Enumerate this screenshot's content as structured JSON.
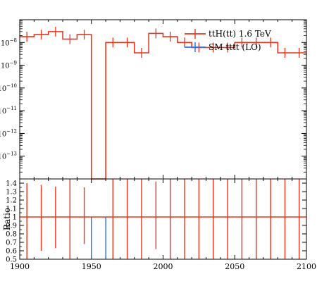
{
  "chart_data": [
    {
      "panel": "main",
      "type": "line",
      "style": "step histogram with error bars",
      "ylog": true,
      "ylim": [
        1e-14,
        1e-07
      ],
      "xlim": [
        1900,
        2100
      ],
      "yticks": [
        {
          "value": 1e-08,
          "base": "10",
          "exp": "−8"
        },
        {
          "value": 1e-09,
          "base": "10",
          "exp": "−9"
        },
        {
          "value": 1e-10,
          "base": "10",
          "exp": "−10"
        },
        {
          "value": 1e-11,
          "base": "10",
          "exp": "−11"
        },
        {
          "value": 1e-12,
          "base": "10",
          "exp": "−12"
        },
        {
          "value": 1e-13,
          "base": "10",
          "exp": "−13"
        }
      ],
      "legend_position": "top-right",
      "legend": [
        {
          "label": "ttH(tt) 1.6 TeV",
          "color": "#e8341c"
        },
        {
          "label": "SM tttt (LO)",
          "color": "#2f6fd6"
        }
      ],
      "bin_edges": [
        1900,
        1910,
        1920,
        1930,
        1940,
        1950,
        1960,
        1970,
        1980,
        1990,
        2000,
        2010,
        2020,
        2030,
        2040,
        2050,
        2060,
        2070,
        2080,
        2090,
        2100
      ],
      "series": [
        {
          "name": "ttH(tt) 1.6 TeV",
          "color": "#e8341c",
          "values": [
            1.8e-08,
            2.2e-08,
            3e-08,
            1.4e-08,
            2.2e-08,
            null,
            1e-08,
            1e-08,
            3.5e-09,
            2.5e-08,
            1.8e-08,
            1e-08,
            6e-09,
            6e-09,
            6e-09,
            1e-08,
            1e-08,
            1e-08,
            3.5e-09,
            3.5e-09
          ]
        }
      ]
    },
    {
      "panel": "ratio",
      "type": "line",
      "ylabel": "Ratio",
      "ylim": [
        0.5,
        1.45
      ],
      "xlim": [
        1900,
        2100
      ],
      "yticks": [
        1.4,
        1.3,
        1.2,
        1.1,
        1,
        0.9,
        0.8,
        0.7,
        0.6,
        0.5
      ],
      "ytick_labels": [
        "1.4",
        "1.3",
        "1.2",
        "1.1",
        "1",
        "0.9",
        "0.8",
        "0.7",
        "0.6",
        "0.5"
      ],
      "xticks": [
        1900,
        1950,
        2000,
        2050,
        2100
      ],
      "xtick_labels": [
        "1900",
        "1950",
        "2000",
        "2050",
        "2100"
      ],
      "reference_value": 1.0,
      "error_bar_centers": [
        1905,
        1915,
        1925,
        1935,
        1945,
        1965,
        1975,
        1985,
        1995,
        2005,
        2015,
        2025,
        2035,
        2045,
        2055,
        2065,
        2075,
        2085,
        2095
      ],
      "error_bar_low": [
        0.5,
        0.6,
        0.63,
        0.5,
        0.68,
        0.5,
        0.5,
        0.5,
        0.62,
        0.5,
        0.5,
        0.5,
        0.5,
        0.5,
        0.5,
        0.5,
        0.5,
        0.5,
        0.5
      ],
      "error_bar_high": [
        1.4,
        1.38,
        1.36,
        1.45,
        1.35,
        1.45,
        1.45,
        1.45,
        1.42,
        1.45,
        1.45,
        1.45,
        1.45,
        1.45,
        1.45,
        1.45,
        1.45,
        1.45,
        1.45
      ],
      "blue_error_bar_x": [
        1950,
        1960
      ],
      "blue_error_bar_range": [
        0.5,
        1.0
      ]
    }
  ]
}
